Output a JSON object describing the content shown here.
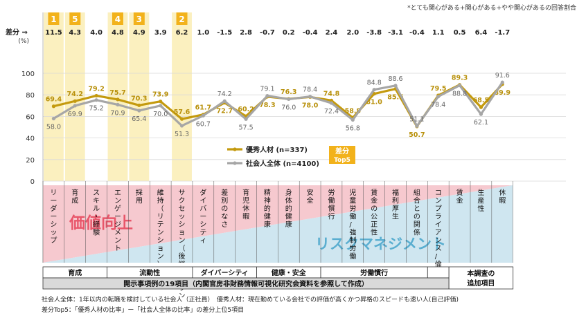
{
  "note": "*とても関心がある+関心がある+やや関心があるの回答割合",
  "diff_label": "差分 ⇒",
  "percent_label": "(%)",
  "chart_data": {
    "type": "line",
    "ylim": [
      0,
      100
    ],
    "yticks": [
      "0",
      "20",
      "40",
      "60",
      "80",
      "100"
    ],
    "categories": [
      "リーダーシップ",
      "育成",
      "スキル・経験",
      "エンゲージメント",
      "採用",
      "維持（リテンション）",
      "サクセッション（後継者プラン）",
      "ダイバーシティ",
      "差別のなさ",
      "育児休暇",
      "精神的健康",
      "身体的健康",
      "安全",
      "労働慣行",
      "児童労働/強制労働",
      "賃金の公正性",
      "福利厚生",
      "組合との関係",
      "コンプライアンス/倫理",
      "賃金",
      "生産性",
      "休暇"
    ],
    "diffs": [
      "11.5",
      "4.3",
      "4.0",
      "4.8",
      "4.9",
      "3.9",
      "6.2",
      "1.0",
      "-1.5",
      "2.8",
      "-0.7",
      "0.2",
      "-0.4",
      "2.4",
      "2.0",
      "-3.8",
      "-3.1",
      "-0.4",
      "1.1",
      "0.5",
      "6.4",
      "-1.7"
    ],
    "top5": [
      {
        "category_index": 0,
        "rank": "1"
      },
      {
        "category_index": 1,
        "rank": "5"
      },
      {
        "category_index": 3,
        "rank": "4"
      },
      {
        "category_index": 4,
        "rank": "3"
      },
      {
        "category_index": 6,
        "rank": "2"
      }
    ],
    "series": [
      {
        "name": "優秀人材 (n=337)",
        "color": "#c49a0e",
        "values": [
          69.4,
          74.2,
          79.2,
          75.7,
          70.3,
          73.9,
          57.6,
          61.7,
          72.7,
          60.2,
          78.3,
          76.3,
          78.0,
          74.8,
          58.8,
          81.0,
          85.5,
          50.7,
          79.5,
          89.3,
          68.5,
          89.9
        ],
        "labels": [
          "69.4",
          "74.2",
          "79.2",
          "75.7",
          "70.3",
          "73.9",
          "57.6",
          "61.7",
          "72.7",
          "60.2",
          "78.3",
          "76.3",
          "78.0",
          "74.8",
          "58.8",
          "81.0",
          "85.5",
          "50.7",
          "79.5",
          "89.3",
          "68.5",
          "89.9"
        ]
      },
      {
        "name": "社会人全体 (n=4100)",
        "color": "#a6a6a6",
        "values": [
          58.0,
          69.9,
          75.2,
          70.9,
          65.4,
          70.0,
          51.3,
          60.7,
          74.2,
          57.5,
          79.1,
          76.0,
          78.4,
          72.4,
          56.8,
          84.8,
          88.6,
          51.1,
          78.4,
          88.8,
          62.1,
          91.6
        ],
        "labels": [
          "58.0",
          "69.9",
          "75.2",
          "70.9",
          "65.4",
          "70.0",
          "51.3",
          "60.7",
          "74.2",
          "57.5",
          "79.1",
          "76.0",
          "78.4",
          "72.4",
          "56.8",
          "84.8",
          "88.6",
          "51.1",
          "78.4",
          "88.8",
          "62.1",
          "91.6"
        ]
      }
    ],
    "legend_top5": [
      "差分",
      "Top5"
    ],
    "groups": [
      {
        "label": "育成",
        "start": 0,
        "end": 2
      },
      {
        "label": "流動性",
        "start": 3,
        "end": 6
      },
      {
        "label": "ダイバーシティ",
        "start": 7,
        "end": 9
      },
      {
        "label": "健康・安全",
        "start": 10,
        "end": 12
      },
      {
        "label": "労働慣行",
        "start": 13,
        "end": 17
      },
      {
        "label": "",
        "start": 18,
        "end": 18
      }
    ],
    "extra_group": [
      "本調査の",
      "追加項目"
    ],
    "bottom_label": "開示事項例の19項目（内閣官房非財務情報可視化研究会資料を参照して作成）",
    "overlay_value": "価値向上",
    "overlay_risk": "リスクマネジメント"
  },
  "footnotes": [
    "社会人全体：1年以内の転職を検討している社会人（正社員）　優秀人材：現在勤めている会社での評価が高くかつ昇格のスピードも速い人(自己評価)",
    "差分Top5：「優秀人材の比率」ー「社会人全体の比率」の差分上位5項目"
  ],
  "colors": {
    "gold": "#c49a0e",
    "gray": "#a6a6a6",
    "highlight": "#fbf0bf",
    "badge": "#f2b21b",
    "pink": "#f6c9cf",
    "blue": "#cfe6f0",
    "risk_text": "#5aaed0",
    "value_text": "#e8566a"
  }
}
